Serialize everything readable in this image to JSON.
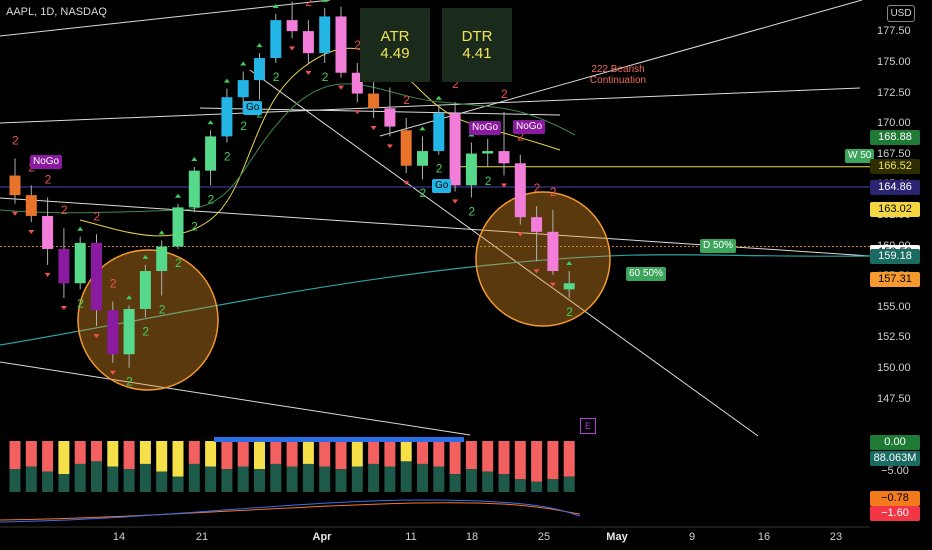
{
  "header": {
    "title": "AAPL, 1D, NASDAQ",
    "currency": "USD"
  },
  "stats": [
    {
      "label": "ATR",
      "value": "4.49"
    },
    {
      "label": "DTR",
      "value": "4.41"
    }
  ],
  "annotation": {
    "line1": "222 Bearish",
    "line2": "Continuation"
  },
  "tags": {
    "nogo": "NoGo",
    "go": "Go",
    "d50": "D 50%",
    "w50": "W 50",
    "sixty": "60 50%",
    "e": "E",
    "count_digit": "2"
  },
  "price_axis": {
    "ticks": [
      177.5,
      175.0,
      172.5,
      170.0,
      167.5,
      165.0,
      162.5,
      160.0,
      157.5,
      155.0,
      152.5,
      150.0,
      147.5
    ],
    "ymin": 145.5,
    "ymax": 179.0,
    "highlighted": [
      {
        "value": "168.88",
        "bg": "#1f7a36",
        "fg": "#ffffff"
      },
      {
        "value": "166.52",
        "bg": "#2d2d00",
        "fg": "#f0e068"
      },
      {
        "value": "164.86",
        "bg": "#2b2470",
        "fg": "#ffffff"
      },
      {
        "value": "163.02",
        "bg": "#f5d742",
        "fg": "#000000"
      },
      {
        "value": "159.53",
        "bg": "#ffffff",
        "fg": "#000000"
      },
      {
        "value": "159.18",
        "bg": "#1a6b62",
        "fg": "#ffffff"
      },
      {
        "value": "157.31",
        "bg": "#f59a2e",
        "fg": "#000000"
      }
    ]
  },
  "oscillator_axis": [
    {
      "value": "0.00",
      "bg": "#1f7a36",
      "fg": "#ffffff"
    },
    {
      "value": "88.063M",
      "bg": "#1a6b62",
      "fg": "#ffffff"
    },
    {
      "value": "−5.00",
      "bg": "",
      "fg": "#cfcfcf"
    },
    {
      "value": "−0.78",
      "bg": "#f47a1e",
      "fg": "#000000"
    },
    {
      "value": "−1.60",
      "bg": "#f23645",
      "fg": "#ffffff"
    }
  ],
  "time_axis": [
    {
      "label": "14",
      "bold": false
    },
    {
      "label": "21",
      "bold": false
    },
    {
      "label": "Apr",
      "bold": true
    },
    {
      "label": "11",
      "bold": false
    },
    {
      "label": "18",
      "bold": false
    },
    {
      "label": "25",
      "bold": false
    },
    {
      "label": "May",
      "bold": true
    },
    {
      "label": "9",
      "bold": false
    },
    {
      "label": "16",
      "bold": false
    },
    {
      "label": "23",
      "bold": false
    }
  ],
  "colors": {
    "up_green": "#56d98a",
    "up_cyan": "#22b5e6",
    "down_pink": "#f27ed9",
    "down_orange": "#e8732a",
    "down_purple": "#8a1aa0",
    "wick": "#b0b0b0",
    "green_arrow": "#3ecf5a",
    "red_arrow": "#f0524f"
  },
  "chart_data": {
    "type": "candlestick",
    "series": [
      {
        "name": "AAPL",
        "ohlc": [
          [
            165.8,
            167.2,
            163.5,
            164.2
          ],
          [
            164.2,
            165.0,
            162.0,
            162.5
          ],
          [
            162.5,
            164.0,
            158.5,
            159.8
          ],
          [
            159.8,
            161.5,
            155.8,
            157.0
          ],
          [
            157.0,
            160.8,
            156.5,
            160.3
          ],
          [
            160.3,
            161.0,
            153.5,
            154.8
          ],
          [
            154.8,
            155.5,
            150.5,
            151.2
          ],
          [
            151.2,
            155.2,
            150.1,
            154.9
          ],
          [
            154.9,
            158.5,
            154.2,
            158.0
          ],
          [
            158.0,
            160.5,
            156.0,
            160.0
          ],
          [
            160.0,
            163.5,
            159.8,
            163.2
          ],
          [
            163.2,
            166.5,
            162.8,
            166.2
          ],
          [
            166.2,
            169.5,
            165.0,
            169.0
          ],
          [
            169.0,
            172.9,
            168.5,
            172.2
          ],
          [
            172.2,
            174.3,
            171.0,
            173.6
          ],
          [
            173.6,
            175.8,
            172.0,
            175.4
          ],
          [
            175.4,
            179.0,
            175.0,
            178.5
          ],
          [
            178.5,
            180.0,
            177.0,
            177.6
          ],
          [
            177.6,
            178.5,
            175.0,
            175.8
          ],
          [
            175.8,
            179.5,
            175.0,
            178.8
          ],
          [
            178.8,
            179.6,
            173.8,
            174.2
          ],
          [
            174.2,
            175.0,
            171.8,
            172.5
          ],
          [
            172.5,
            173.5,
            170.5,
            171.3
          ],
          [
            171.3,
            173.0,
            169.0,
            169.8
          ],
          [
            169.5,
            170.5,
            166.0,
            166.6
          ],
          [
            166.6,
            169.0,
            165.5,
            167.8
          ],
          [
            167.8,
            171.5,
            167.5,
            170.9
          ],
          [
            170.9,
            171.8,
            164.5,
            165.0
          ],
          [
            165.0,
            168.5,
            164.0,
            167.6
          ],
          [
            167.6,
            168.8,
            166.5,
            167.8
          ],
          [
            167.8,
            171.0,
            165.8,
            166.8
          ],
          [
            166.8,
            167.5,
            161.8,
            162.4
          ],
          [
            162.4,
            163.3,
            158.8,
            161.2
          ],
          [
            161.2,
            163.0,
            157.7,
            158.0
          ],
          [
            156.5,
            158.0,
            155.8,
            157.0
          ]
        ]
      }
    ],
    "volume_ratio_series": [
      {
        "name": "bull",
        "values": [
          0.45,
          0.5,
          0.4,
          0.35,
          0.55,
          0.6,
          0.5,
          0.45,
          0.55,
          0.4,
          0.3,
          0.55,
          0.5,
          0.45,
          0.5,
          0.45,
          0.55,
          0.5,
          0.55,
          0.5,
          0.45,
          0.5,
          0.55,
          0.5,
          0.6,
          0.55,
          0.5,
          0.35,
          0.45,
          0.4,
          0.35,
          0.25,
          0.2,
          0.25,
          0.3
        ]
      }
    ]
  }
}
